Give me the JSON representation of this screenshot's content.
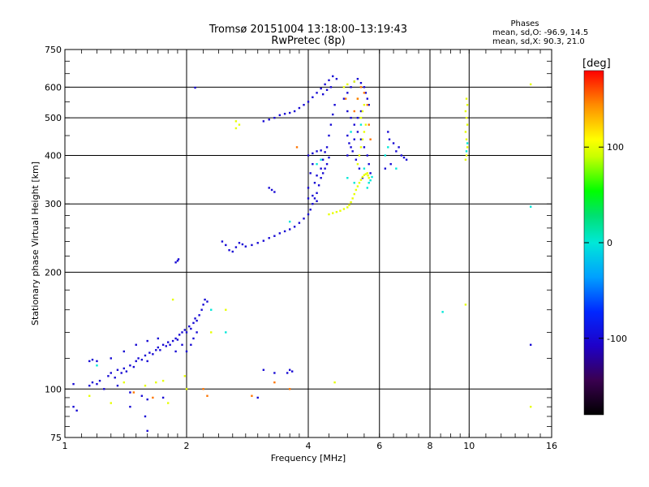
{
  "chart_data": {
    "type": "scatter",
    "title": "Tromsø 20151004 13:18:00–13:19:43",
    "subtitle": "RwPretec (8p)",
    "xlabel": "Frequency [MHz]",
    "ylabel": "Stationary phase Virtual Height [km]",
    "x_scale": "log",
    "y_scale": "log",
    "xlim": [
      1,
      16
    ],
    "ylim": [
      75,
      750
    ],
    "x_ticks": [
      1,
      2,
      4,
      6,
      8,
      10,
      16
    ],
    "x_tick_labels": [
      "1",
      "2",
      "4",
      "6",
      "8",
      "10",
      "16"
    ],
    "y_ticks": [
      75,
      100,
      200,
      300,
      400,
      500,
      600,
      750
    ],
    "y_tick_labels": [
      "75",
      "100",
      "200",
      "300",
      "400",
      "500",
      "600",
      "750"
    ],
    "grid": true,
    "phases_box": {
      "heading": "Phases",
      "line_o": "mean, sd,O: -96.9, 14.5",
      "line_x": "mean, sd,X:  90.3, 21.0"
    },
    "colorbar": {
      "label": "[deg]",
      "ticks": [
        -100,
        0,
        100
      ],
      "tick_labels": [
        "-100",
        "0",
        "100"
      ],
      "range": [
        -180,
        180
      ]
    },
    "series": [
      {
        "color_phase": -100,
        "points": [
          [
            1.05,
            90
          ],
          [
            1.07,
            88
          ],
          [
            1.05,
            103
          ],
          [
            1.15,
            102
          ],
          [
            1.17,
            104
          ],
          [
            1.2,
            103
          ],
          [
            1.22,
            105
          ],
          [
            1.15,
            118
          ],
          [
            1.17,
            119
          ],
          [
            1.2,
            118
          ],
          [
            1.28,
            108
          ],
          [
            1.3,
            110
          ],
          [
            1.33,
            107
          ],
          [
            1.35,
            112
          ],
          [
            1.38,
            110
          ],
          [
            1.4,
            113
          ],
          [
            1.42,
            111
          ],
          [
            1.45,
            115
          ],
          [
            1.48,
            114
          ],
          [
            1.5,
            118
          ],
          [
            1.52,
            120
          ],
          [
            1.55,
            119
          ],
          [
            1.58,
            122
          ],
          [
            1.6,
            118
          ],
          [
            1.62,
            124
          ],
          [
            1.65,
            123
          ],
          [
            1.68,
            126
          ],
          [
            1.7,
            128
          ],
          [
            1.72,
            126
          ],
          [
            1.75,
            130
          ],
          [
            1.78,
            129
          ],
          [
            1.8,
            132
          ],
          [
            1.82,
            130
          ],
          [
            1.85,
            133
          ],
          [
            1.88,
            135
          ],
          [
            1.9,
            134
          ],
          [
            1.92,
            138
          ],
          [
            1.95,
            140
          ],
          [
            1.98,
            142
          ],
          [
            2.0,
            140
          ],
          [
            2.03,
            145
          ],
          [
            2.05,
            143
          ],
          [
            2.08,
            148
          ],
          [
            2.1,
            152
          ],
          [
            2.12,
            150
          ],
          [
            2.15,
            155
          ],
          [
            2.18,
            160
          ],
          [
            2.2,
            165
          ],
          [
            2.22,
            170
          ],
          [
            2.25,
            168
          ],
          [
            2.05,
            130
          ],
          [
            2.08,
            135
          ],
          [
            2.12,
            140
          ],
          [
            2.0,
            125
          ],
          [
            1.95,
            130
          ],
          [
            1.88,
            125
          ],
          [
            1.3,
            120
          ],
          [
            1.4,
            125
          ],
          [
            1.5,
            130
          ],
          [
            1.6,
            133
          ],
          [
            1.7,
            135
          ],
          [
            1.25,
            100
          ],
          [
            1.35,
            102
          ],
          [
            1.45,
            98
          ],
          [
            1.55,
            96
          ],
          [
            1.6,
            94
          ],
          [
            1.75,
            95
          ],
          [
            1.45,
            90
          ],
          [
            1.58,
            85
          ],
          [
            1.6,
            78
          ],
          [
            1.88,
            212
          ],
          [
            1.9,
            214
          ],
          [
            1.91,
            216
          ],
          [
            2.1,
            598
          ],
          [
            3.1,
            112
          ],
          [
            3.3,
            110
          ],
          [
            3.55,
            110
          ],
          [
            3.6,
            112
          ],
          [
            3.65,
            111
          ],
          [
            3.0,
            95
          ],
          [
            2.45,
            240
          ],
          [
            2.5,
            235
          ],
          [
            2.55,
            228
          ],
          [
            2.6,
            226
          ],
          [
            2.65,
            232
          ],
          [
            2.7,
            238
          ],
          [
            2.75,
            236
          ],
          [
            2.8,
            233
          ],
          [
            2.9,
            235
          ],
          [
            3.0,
            238
          ],
          [
            3.1,
            241
          ],
          [
            3.2,
            245
          ],
          [
            3.3,
            248
          ],
          [
            3.4,
            252
          ],
          [
            3.5,
            255
          ],
          [
            3.6,
            258
          ],
          [
            3.7,
            262
          ],
          [
            3.8,
            268
          ],
          [
            3.9,
            275
          ],
          [
            4.0,
            282
          ],
          [
            4.05,
            290
          ],
          [
            4.1,
            300
          ],
          [
            4.15,
            310
          ],
          [
            4.2,
            320
          ],
          [
            4.25,
            335
          ],
          [
            4.3,
            350
          ],
          [
            4.35,
            360
          ],
          [
            4.4,
            370
          ],
          [
            4.45,
            380
          ],
          [
            4.5,
            395
          ],
          [
            3.1,
            490
          ],
          [
            3.2,
            495
          ],
          [
            3.3,
            500
          ],
          [
            3.4,
            508
          ],
          [
            3.5,
            512
          ],
          [
            3.6,
            515
          ],
          [
            3.7,
            520
          ],
          [
            3.8,
            530
          ],
          [
            3.9,
            540
          ],
          [
            4.0,
            550
          ],
          [
            4.1,
            565
          ],
          [
            4.2,
            580
          ],
          [
            4.3,
            595
          ],
          [
            4.4,
            610
          ],
          [
            4.5,
            625
          ],
          [
            4.6,
            640
          ],
          [
            4.7,
            630
          ],
          [
            4.55,
            600
          ],
          [
            4.45,
            590
          ],
          [
            4.35,
            575
          ],
          [
            4.0,
            400
          ],
          [
            4.1,
            405
          ],
          [
            4.2,
            410
          ],
          [
            4.3,
            412
          ],
          [
            4.4,
            408
          ],
          [
            4.0,
            330
          ],
          [
            4.05,
            360
          ],
          [
            4.1,
            380
          ],
          [
            4.15,
            340
          ],
          [
            4.2,
            355
          ],
          [
            4.0,
            310
          ],
          [
            4.1,
            315
          ],
          [
            4.2,
            305
          ],
          [
            4.3,
            370
          ],
          [
            4.35,
            390
          ],
          [
            4.45,
            420
          ],
          [
            4.5,
            450
          ],
          [
            4.55,
            480
          ],
          [
            4.6,
            510
          ],
          [
            4.65,
            540
          ],
          [
            4.9,
            560
          ],
          [
            5.0,
            580
          ],
          [
            5.1,
            600
          ],
          [
            5.2,
            620
          ],
          [
            5.3,
            630
          ],
          [
            5.4,
            615
          ],
          [
            5.5,
            600
          ],
          [
            5.55,
            580
          ],
          [
            5.6,
            560
          ],
          [
            5.65,
            540
          ],
          [
            5.0,
            520
          ],
          [
            5.1,
            500
          ],
          [
            5.2,
            480
          ],
          [
            5.3,
            460
          ],
          [
            5.4,
            440
          ],
          [
            5.5,
            420
          ],
          [
            5.6,
            400
          ],
          [
            5.65,
            380
          ],
          [
            5.7,
            360
          ],
          [
            5.0,
            450
          ],
          [
            5.05,
            430
          ],
          [
            5.15,
            410
          ],
          [
            5.25,
            390
          ],
          [
            5.35,
            370
          ],
          [
            5.45,
            350
          ],
          [
            5.0,
            400
          ],
          [
            5.1,
            420
          ],
          [
            5.2,
            440
          ],
          [
            5.3,
            500
          ],
          [
            5.4,
            520
          ],
          [
            6.3,
            460
          ],
          [
            6.35,
            440
          ],
          [
            6.5,
            430
          ],
          [
            6.6,
            410
          ],
          [
            6.7,
            420
          ],
          [
            6.8,
            400
          ],
          [
            6.9,
            395
          ],
          [
            7.0,
            390
          ],
          [
            6.4,
            380
          ],
          [
            6.2,
            370
          ],
          [
            3.2,
            330
          ],
          [
            3.25,
            326
          ],
          [
            3.3,
            322
          ],
          [
            14.2,
            130
          ]
        ]
      },
      {
        "color_phase": 100,
        "points": [
          [
            4.5,
            282
          ],
          [
            4.6,
            284
          ],
          [
            4.7,
            286
          ],
          [
            4.8,
            288
          ],
          [
            4.9,
            291
          ],
          [
            5.0,
            294
          ],
          [
            5.05,
            298
          ],
          [
            5.1,
            303
          ],
          [
            5.15,
            310
          ],
          [
            5.2,
            318
          ],
          [
            5.25,
            326
          ],
          [
            5.3,
            333
          ],
          [
            5.35,
            340
          ],
          [
            5.4,
            346
          ],
          [
            5.45,
            352
          ],
          [
            5.5,
            356
          ],
          [
            5.55,
            358
          ],
          [
            5.6,
            360
          ],
          [
            5.62,
            355
          ],
          [
            5.65,
            350
          ],
          [
            5.3,
            380
          ],
          [
            5.35,
            400
          ],
          [
            5.4,
            420
          ],
          [
            5.45,
            440
          ],
          [
            5.5,
            460
          ],
          [
            5.55,
            480
          ],
          [
            5.4,
            500
          ],
          [
            5.45,
            520
          ],
          [
            5.5,
            540
          ],
          [
            5.3,
            560
          ],
          [
            4.9,
            600
          ],
          [
            5.0,
            610
          ],
          [
            5.2,
            620
          ],
          [
            9.8,
            520
          ],
          [
            9.85,
            500
          ],
          [
            9.9,
            480
          ],
          [
            9.8,
            460
          ],
          [
            9.85,
            440
          ],
          [
            9.9,
            420
          ],
          [
            9.85,
            400
          ],
          [
            9.8,
            390
          ],
          [
            9.9,
            540
          ],
          [
            9.85,
            560
          ],
          [
            2.65,
            470
          ],
          [
            2.7,
            480
          ],
          [
            2.65,
            490
          ],
          [
            1.4,
            104
          ],
          [
            1.58,
            102
          ],
          [
            1.68,
            104
          ],
          [
            1.75,
            105
          ],
          [
            1.85,
            170
          ],
          [
            2.3,
            140
          ],
          [
            2.5,
            160
          ],
          [
            1.15,
            96
          ],
          [
            1.3,
            92
          ],
          [
            1.8,
            92
          ],
          [
            2.0,
            100
          ],
          [
            1.98,
            108
          ],
          [
            4.65,
            104
          ],
          [
            14.2,
            610
          ],
          [
            14.2,
            90
          ],
          [
            9.8,
            165
          ]
        ]
      },
      {
        "color_phase": 0,
        "points": [
          [
            5.6,
            330
          ],
          [
            5.65,
            340
          ],
          [
            5.7,
            345
          ],
          [
            5.75,
            352
          ],
          [
            5.2,
            340
          ],
          [
            5.5,
            370
          ],
          [
            6.3,
            420
          ],
          [
            6.2,
            400
          ],
          [
            6.6,
            370
          ],
          [
            9.85,
            410
          ],
          [
            9.9,
            430
          ],
          [
            3.6,
            270
          ],
          [
            4.2,
            380
          ],
          [
            4.3,
            390
          ],
          [
            5.1,
            460
          ],
          [
            5.4,
            480
          ],
          [
            1.2,
            115
          ],
          [
            2.5,
            140
          ],
          [
            14.2,
            295
          ],
          [
            8.6,
            158
          ],
          [
            2.3,
            160
          ],
          [
            5.0,
            350
          ]
        ]
      },
      {
        "color_phase": 150,
        "points": [
          [
            3.75,
            420
          ],
          [
            5.3,
            560
          ],
          [
            5.4,
            600
          ],
          [
            5.5,
            580
          ],
          [
            5.6,
            540
          ],
          [
            5.65,
            480
          ],
          [
            5.7,
            440
          ],
          [
            2.9,
            96
          ],
          [
            3.3,
            104
          ],
          [
            3.6,
            100
          ],
          [
            1.48,
            98
          ],
          [
            1.65,
            95
          ],
          [
            2.2,
            100
          ],
          [
            2.25,
            96
          ],
          [
            4.95,
            560
          ],
          [
            5.2,
            520
          ]
        ]
      }
    ]
  }
}
